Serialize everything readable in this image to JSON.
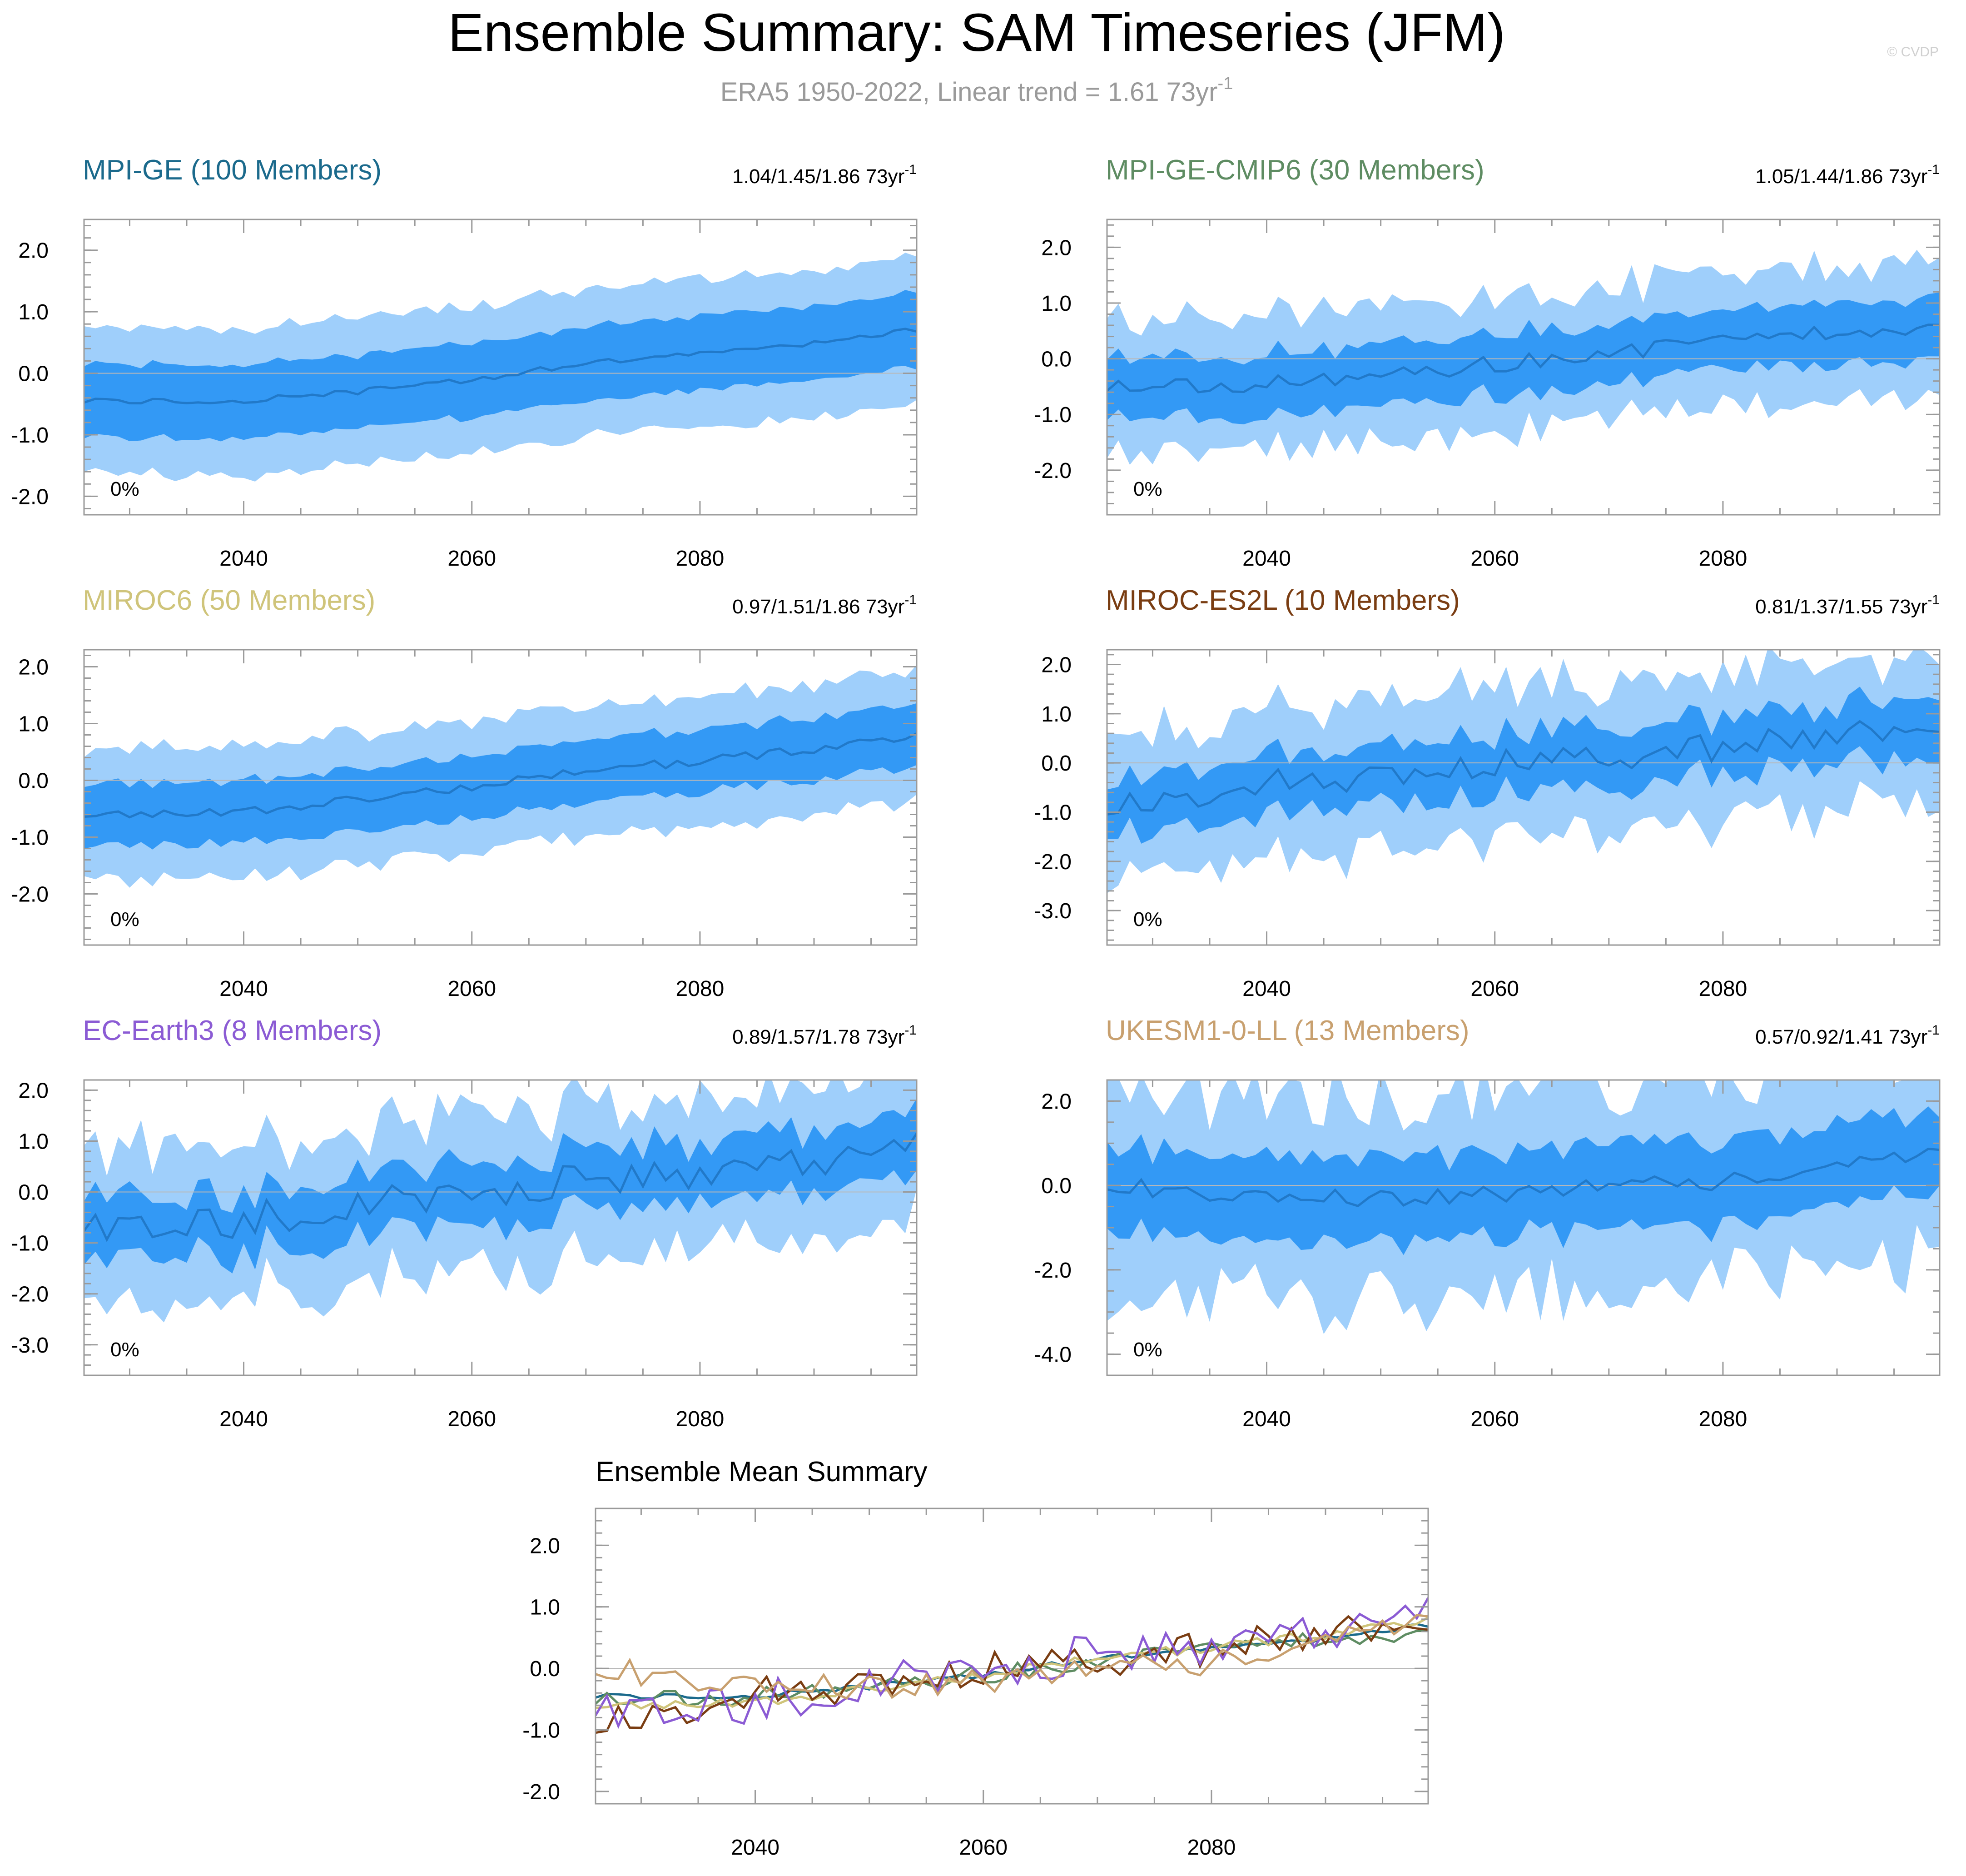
{
  "title": "Ensemble Summary: SAM Timeseries (JFM)",
  "subtitle": {
    "text": "ERA5 1950-2022, Linear trend = 1.61 73yr",
    "sup": "-1"
  },
  "copyright": "© CVDP",
  "colors": {
    "outer_band": "#9fcffb",
    "inner_band": "#3399f5",
    "mean_line": "#2179c9",
    "zero_line": "#b8b8b8",
    "axis": "#9a9a9a",
    "text": "#000000",
    "subtitle": "#9a9a9a"
  },
  "chart_data": [
    {
      "type": "area",
      "name": "MPI-GE (100 Members)",
      "color": "#1b6a8c",
      "trend_label": "1.04/1.45/1.86 73yr",
      "trend_sup": "-1",
      "pct_label": "0%",
      "x_start": 2026,
      "x_end": 2099,
      "x_ticks": [
        2040,
        2060,
        2080
      ],
      "x_tick_labels": [
        "2040",
        "2060",
        "2080"
      ],
      "ylim": [
        -2.3,
        2.5
      ],
      "y_ticks": [
        -2,
        -1,
        0,
        1,
        2
      ],
      "y_tick_labels": [
        "-2.0",
        "-1.0",
        "0.0",
        "1.0",
        "2.0"
      ],
      "mean_anchors": [
        [
          2026,
          -0.45
        ],
        [
          2040,
          -0.45
        ],
        [
          2050,
          -0.3
        ],
        [
          2060,
          -0.1
        ],
        [
          2070,
          0.15
        ],
        [
          2080,
          0.3
        ],
        [
          2090,
          0.5
        ],
        [
          2099,
          0.7
        ]
      ],
      "inner_half": 0.6,
      "outer_half": 1.2,
      "noise": 0.12,
      "mean_noise": 0.05,
      "seed": 11
    },
    {
      "type": "area",
      "name": "MPI-GE-CMIP6 (30 Members)",
      "color": "#5e8c62",
      "trend_label": "1.05/1.44/1.86 73yr",
      "trend_sup": "-1",
      "pct_label": "0%",
      "x_start": 2026,
      "x_end": 2099,
      "x_ticks": [
        2040,
        2060,
        2080
      ],
      "x_tick_labels": [
        "2040",
        "2060",
        "2080"
      ],
      "ylim": [
        -2.8,
        2.5
      ],
      "y_ticks": [
        -2,
        -1,
        0,
        1,
        2
      ],
      "y_tick_labels": [
        "-2.0",
        "-1.0",
        "0.0",
        "1.0",
        "2.0"
      ],
      "mean_anchors": [
        [
          2026,
          -0.5
        ],
        [
          2040,
          -0.45
        ],
        [
          2050,
          -0.3
        ],
        [
          2060,
          -0.1
        ],
        [
          2070,
          0.1
        ],
        [
          2080,
          0.3
        ],
        [
          2090,
          0.5
        ],
        [
          2099,
          0.6
        ]
      ],
      "inner_half": 0.55,
      "outer_half": 1.2,
      "noise": 0.3,
      "mean_noise": 0.15,
      "seed": 23
    },
    {
      "type": "area",
      "name": "MIROC6 (50 Members)",
      "color": "#cfc47a",
      "trend_label": "0.97/1.51/1.86 73yr",
      "trend_sup": "-1",
      "pct_label": "0%",
      "x_start": 2026,
      "x_end": 2099,
      "x_ticks": [
        2040,
        2060,
        2080
      ],
      "x_tick_labels": [
        "2040",
        "2060",
        "2080"
      ],
      "ylim": [
        -2.9,
        2.3
      ],
      "y_ticks": [
        -2,
        -1,
        0,
        1,
        2
      ],
      "y_tick_labels": [
        "-2.0",
        "-1.0",
        "0.0",
        "1.0",
        "2.0"
      ],
      "mean_anchors": [
        [
          2026,
          -0.6
        ],
        [
          2040,
          -0.55
        ],
        [
          2050,
          -0.35
        ],
        [
          2060,
          -0.1
        ],
        [
          2070,
          0.15
        ],
        [
          2080,
          0.35
        ],
        [
          2090,
          0.55
        ],
        [
          2099,
          0.75
        ]
      ],
      "inner_half": 0.55,
      "outer_half": 1.15,
      "noise": 0.15,
      "mean_noise": 0.08,
      "seed": 37
    },
    {
      "type": "area",
      "name": "MIROC-ES2L (10 Members)",
      "color": "#7a3d12",
      "trend_label": "0.81/1.37/1.55 73yr",
      "trend_sup": "-1",
      "pct_label": "0%",
      "x_start": 2026,
      "x_end": 2099,
      "x_ticks": [
        2040,
        2060,
        2080
      ],
      "x_tick_labels": [
        "2040",
        "2060",
        "2080"
      ],
      "ylim": [
        -3.7,
        2.3
      ],
      "y_ticks": [
        -3,
        -2,
        -1,
        0,
        1,
        2
      ],
      "y_tick_labels": [
        "-3.0",
        "-2.0",
        "-1.0",
        "0.0",
        "1.0",
        "2.0"
      ],
      "mean_anchors": [
        [
          2026,
          -0.9
        ],
        [
          2040,
          -0.4
        ],
        [
          2050,
          -0.3
        ],
        [
          2060,
          0.0
        ],
        [
          2070,
          0.1
        ],
        [
          2080,
          0.3
        ],
        [
          2090,
          0.6
        ],
        [
          2099,
          0.55
        ]
      ],
      "inner_half": 0.6,
      "outer_half": 1.5,
      "noise": 0.4,
      "mean_noise": 0.3,
      "seed": 53
    },
    {
      "type": "area",
      "name": "EC-Earth3 (8 Members)",
      "color": "#8b5bd4",
      "trend_label": "0.89/1.57/1.78 73yr",
      "trend_sup": "-1",
      "pct_label": "0%",
      "x_start": 2026,
      "x_end": 2099,
      "x_ticks": [
        2040,
        2060,
        2080
      ],
      "x_tick_labels": [
        "2040",
        "2060",
        "2080"
      ],
      "ylim": [
        -3.6,
        2.2
      ],
      "y_ticks": [
        -3,
        -2,
        -1,
        0,
        1,
        2
      ],
      "y_tick_labels": [
        "-3.0",
        "-2.0",
        "-1.0",
        "0.0",
        "1.0",
        "2.0"
      ],
      "mean_anchors": [
        [
          2026,
          -0.6
        ],
        [
          2040,
          -0.55
        ],
        [
          2050,
          -0.3
        ],
        [
          2060,
          0.0
        ],
        [
          2070,
          0.3
        ],
        [
          2080,
          0.4
        ],
        [
          2090,
          0.6
        ],
        [
          2099,
          1.15
        ]
      ],
      "inner_half": 0.6,
      "outer_half": 1.5,
      "noise": 0.45,
      "mean_noise": 0.35,
      "seed": 71
    },
    {
      "type": "area",
      "name": "UKESM1-0-LL (13 Members)",
      "color": "#c8a06f",
      "trend_label": "0.57/0.92/1.41 73yr",
      "trend_sup": "-1",
      "pct_label": "0%",
      "x_start": 2026,
      "x_end": 2099,
      "x_ticks": [
        2040,
        2060,
        2080
      ],
      "x_tick_labels": [
        "2040",
        "2060",
        "2080"
      ],
      "ylim": [
        -4.5,
        2.5
      ],
      "y_ticks": [
        -4,
        -2,
        0,
        2
      ],
      "y_tick_labels": [
        "-4.0",
        "-2.0",
        "0.0",
        "2.0"
      ],
      "mean_anchors": [
        [
          2026,
          0.0
        ],
        [
          2040,
          -0.3
        ],
        [
          2050,
          -0.3
        ],
        [
          2060,
          -0.2
        ],
        [
          2070,
          0.0
        ],
        [
          2080,
          0.1
        ],
        [
          2090,
          0.4
        ],
        [
          2099,
          0.9
        ]
      ],
      "inner_half": 1.0,
      "outer_half": 2.4,
      "noise": 0.5,
      "mean_noise": 0.2,
      "seed": 89
    },
    {
      "type": "line",
      "name": "Ensemble Mean Summary",
      "color": "#000000",
      "x_start": 2026,
      "x_end": 2099,
      "x_ticks": [
        2040,
        2060,
        2080
      ],
      "x_tick_labels": [
        "2040",
        "2060",
        "2080"
      ],
      "ylim": [
        -2.2,
        2.6
      ],
      "y_ticks": [
        -2,
        -1,
        0,
        1,
        2
      ],
      "y_tick_labels": [
        "-2.0",
        "-1.0",
        "0.0",
        "1.0",
        "2.0"
      ],
      "series_from": [
        0,
        1,
        2,
        3,
        4,
        5
      ]
    }
  ]
}
